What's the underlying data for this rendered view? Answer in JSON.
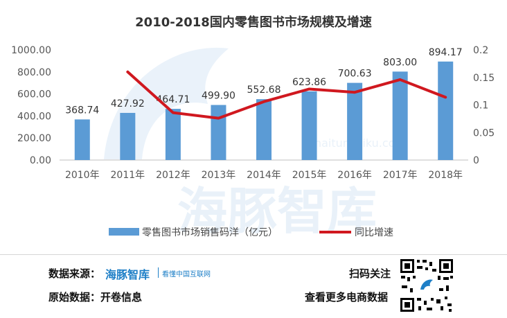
{
  "chart_data": {
    "type": "bar+line",
    "title": "2010-2018国内零售图书市场规模及增速",
    "categories": [
      "2010年",
      "2011年",
      "2012年",
      "2013年",
      "2014年",
      "2015年",
      "2016年",
      "2017年",
      "2018年"
    ],
    "series": [
      {
        "name": "零售图书市场销售码洋（亿元）",
        "type": "bar",
        "axis": "left",
        "color": "#5b9bd5",
        "values": [
          368.74,
          427.92,
          464.71,
          499.9,
          552.68,
          623.86,
          700.63,
          803.0,
          894.17
        ],
        "labels": [
          "368.74",
          "427.92",
          "464.71",
          "499.90",
          "552.68",
          "623.86",
          "700.63",
          "803.00",
          "894.17"
        ]
      },
      {
        "name": "同比增速",
        "type": "line",
        "axis": "right",
        "color": "#d0181f",
        "values": [
          null,
          0.16,
          0.086,
          0.076,
          0.106,
          0.129,
          0.123,
          0.146,
          0.114
        ]
      }
    ],
    "yleft": {
      "min": 0,
      "max": 1000,
      "ticks": [
        "0.00",
        "200.00",
        "400.00",
        "600.00",
        "800.00",
        "1000.00"
      ]
    },
    "yright": {
      "min": 0,
      "max": 0.2,
      "ticks": [
        "0",
        "0.05",
        "0.1",
        "0.15",
        "0.2"
      ]
    },
    "watermark": {
      "brand": "海豚智库",
      "url": "haitunzhiku.com"
    }
  },
  "footer": {
    "source_label": "数据来源：",
    "logo_text": "海豚智库",
    "logo_tagline": "看懂中国互联网",
    "raw_label": "原始数据：开卷信息",
    "scan_label": "扫码关注",
    "more_label": "查看更多电商数据"
  }
}
